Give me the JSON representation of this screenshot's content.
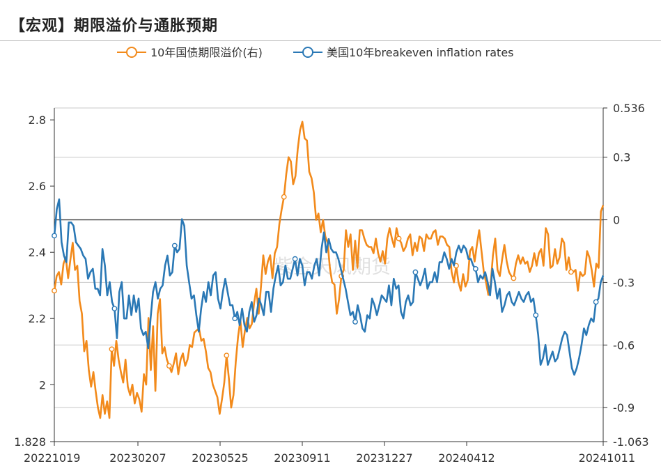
{
  "page": {
    "title": "【宏观】期限溢价与通胀预期"
  },
  "chart_data": {
    "type": "line",
    "title": "",
    "watermark": "紫金天风期货",
    "x_tick_labels": [
      "20221019",
      "20230207",
      "20230525",
      "20230911",
      "20231227",
      "20240412",
      "20241011"
    ],
    "y_left": {
      "range": [
        1.828,
        2.836
      ],
      "ticks": [
        "1.828",
        "2",
        "2.2",
        "2.4",
        "2.6",
        "2.8"
      ]
    },
    "y_right": {
      "range": [
        -1.063,
        0.536
      ],
      "ticks": [
        "-1.063",
        "-0.9",
        "-0.6",
        "-0.3",
        "0",
        "0.3",
        "0.536"
      ]
    },
    "legend": {
      "placement": "top-center"
    },
    "colors": {
      "orange": "#f28a1b",
      "blue": "#2a78b5",
      "grid": "#c8c8c8",
      "axis": "#333333"
    },
    "series": [
      {
        "name": "10年国债期限溢价(右)",
        "axis": "right",
        "color": "#f28a1b",
        "values": [
          -0.34,
          -0.27,
          -0.25,
          -0.31,
          -0.21,
          -0.18,
          -0.28,
          -0.19,
          -0.11,
          -0.24,
          -0.22,
          -0.39,
          -0.45,
          -0.63,
          -0.58,
          -0.72,
          -0.8,
          -0.73,
          -0.82,
          -0.9,
          -0.95,
          -0.84,
          -0.93,
          -0.87,
          -0.95,
          -0.62,
          -0.7,
          -0.58,
          -0.67,
          -0.73,
          -0.78,
          -0.67,
          -0.8,
          -0.84,
          -0.79,
          -0.88,
          -0.83,
          -0.86,
          -0.92,
          -0.74,
          -0.79,
          -0.47,
          -0.72,
          -0.51,
          -0.82,
          -0.45,
          -0.38,
          -0.64,
          -0.61,
          -0.67,
          -0.7,
          -0.73,
          -0.69,
          -0.64,
          -0.74,
          -0.67,
          -0.64,
          -0.7,
          -0.67,
          -0.6,
          -0.61,
          -0.54,
          -0.53,
          -0.52,
          -0.58,
          -0.57,
          -0.63,
          -0.71,
          -0.73,
          -0.79,
          -0.82,
          -0.85,
          -0.93,
          -0.86,
          -0.78,
          -0.65,
          -0.76,
          -0.9,
          -0.84,
          -0.68,
          -0.56,
          -0.48,
          -0.61,
          -0.53,
          -0.47,
          -0.52,
          -0.5,
          -0.4,
          -0.33,
          -0.45,
          -0.32,
          -0.17,
          -0.26,
          -0.2,
          -0.17,
          -0.28,
          -0.16,
          -0.13,
          -0.02,
          0.05,
          0.11,
          0.22,
          0.3,
          0.28,
          0.17,
          0.21,
          0.34,
          0.43,
          0.47,
          0.39,
          0.38,
          0.23,
          0.2,
          0.13,
          0.0,
          0.03,
          -0.06,
          0.0,
          -0.08,
          -0.11,
          -0.23,
          -0.3,
          -0.31,
          -0.45,
          -0.38,
          -0.27,
          -0.24,
          -0.05,
          -0.13,
          -0.07,
          -0.24,
          -0.1,
          -0.23,
          -0.05,
          -0.05,
          -0.09,
          -0.12,
          -0.13,
          -0.13,
          -0.16,
          -0.09,
          -0.16,
          -0.2,
          -0.15,
          -0.21,
          -0.09,
          -0.04,
          -0.09,
          -0.13,
          -0.04,
          -0.09,
          -0.11,
          -0.15,
          -0.13,
          -0.09,
          -0.07,
          -0.17,
          -0.11,
          -0.15,
          -0.08,
          -0.09,
          -0.15,
          -0.07,
          -0.09,
          -0.09,
          -0.06,
          -0.05,
          -0.12,
          -0.08,
          -0.08,
          -0.09,
          -0.12,
          -0.13,
          -0.25,
          -0.3,
          -0.22,
          -0.3,
          -0.34,
          -0.26,
          -0.32,
          -0.29,
          -0.15,
          -0.13,
          -0.2,
          -0.12,
          -0.05,
          -0.15,
          -0.25,
          -0.3,
          -0.36,
          -0.31,
          -0.17,
          -0.09,
          -0.24,
          -0.27,
          -0.19,
          -0.12,
          -0.2,
          -0.25,
          -0.27,
          -0.28,
          -0.21,
          -0.17,
          -0.21,
          -0.18,
          -0.21,
          -0.2,
          -0.25,
          -0.22,
          -0.16,
          -0.22,
          -0.16,
          -0.14,
          -0.22,
          -0.04,
          -0.07,
          -0.23,
          -0.22,
          -0.14,
          -0.21,
          -0.18,
          -0.09,
          -0.11,
          -0.24,
          -0.18,
          -0.25,
          -0.25,
          -0.24,
          -0.34,
          -0.25,
          -0.27,
          -0.26,
          -0.15,
          -0.18,
          -0.24,
          -0.32,
          -0.21,
          -0.23,
          0.04,
          0.07
        ]
      },
      {
        "name": "美国10年breakeven inflation rates",
        "axis": "left",
        "color": "#2a78b5",
        "values": [
          2.45,
          2.53,
          2.56,
          2.43,
          2.39,
          2.37,
          2.49,
          2.49,
          2.48,
          2.43,
          2.42,
          2.41,
          2.39,
          2.38,
          2.32,
          2.34,
          2.35,
          2.29,
          2.29,
          2.27,
          2.41,
          2.36,
          2.27,
          2.31,
          2.25,
          2.23,
          2.14,
          2.28,
          2.31,
          2.2,
          2.2,
          2.27,
          2.21,
          2.27,
          2.22,
          2.26,
          2.17,
          2.15,
          2.16,
          2.11,
          2.2,
          2.28,
          2.31,
          2.26,
          2.29,
          2.3,
          2.36,
          2.39,
          2.33,
          2.34,
          2.42,
          2.4,
          2.41,
          2.5,
          2.48,
          2.36,
          2.31,
          2.26,
          2.27,
          2.21,
          2.16,
          2.23,
          2.28,
          2.25,
          2.31,
          2.27,
          2.33,
          2.34,
          2.26,
          2.23,
          2.28,
          2.32,
          2.28,
          2.24,
          2.24,
          2.2,
          2.22,
          2.18,
          2.23,
          2.18,
          2.16,
          2.22,
          2.25,
          2.19,
          2.21,
          2.26,
          2.24,
          2.21,
          2.28,
          2.28,
          2.22,
          2.29,
          2.33,
          2.36,
          2.3,
          2.31,
          2.36,
          2.32,
          2.32,
          2.35,
          2.38,
          2.33,
          2.38,
          2.36,
          2.3,
          2.34,
          2.34,
          2.32,
          2.36,
          2.38,
          2.33,
          2.41,
          2.46,
          2.4,
          2.44,
          2.41,
          2.4,
          2.4,
          2.38,
          2.35,
          2.32,
          2.29,
          2.25,
          2.21,
          2.22,
          2.19,
          2.24,
          2.21,
          2.17,
          2.16,
          2.21,
          2.2,
          2.26,
          2.24,
          2.21,
          2.24,
          2.27,
          2.26,
          2.25,
          2.3,
          2.24,
          2.32,
          2.29,
          2.3,
          2.22,
          2.2,
          2.25,
          2.27,
          2.24,
          2.25,
          2.34,
          2.32,
          2.3,
          2.32,
          2.35,
          2.29,
          2.31,
          2.31,
          2.34,
          2.31,
          2.37,
          2.37,
          2.4,
          2.38,
          2.35,
          2.38,
          2.36,
          2.4,
          2.42,
          2.4,
          2.42,
          2.41,
          2.38,
          2.38,
          2.36,
          2.35,
          2.31,
          2.33,
          2.32,
          2.34,
          2.31,
          2.27,
          2.35,
          2.31,
          2.26,
          2.29,
          2.22,
          2.24,
          2.27,
          2.28,
          2.25,
          2.24,
          2.26,
          2.28,
          2.26,
          2.25,
          2.27,
          2.28,
          2.25,
          2.26,
          2.21,
          2.15,
          2.06,
          2.08,
          2.12,
          2.06,
          2.08,
          2.1,
          2.07,
          2.08,
          2.11,
          2.14,
          2.16,
          2.15,
          2.1,
          2.05,
          2.03,
          2.05,
          2.08,
          2.12,
          2.17,
          2.15,
          2.18,
          2.2,
          2.19,
          2.25,
          2.26,
          2.31,
          2.33
        ]
      }
    ],
    "markers": {
      "orange": [
        0,
        25,
        50,
        75,
        100,
        125,
        150,
        175,
        200,
        225,
        250
      ],
      "blue": [
        0,
        25,
        50,
        75,
        100,
        125,
        150,
        175,
        200,
        225,
        250
      ]
    }
  }
}
